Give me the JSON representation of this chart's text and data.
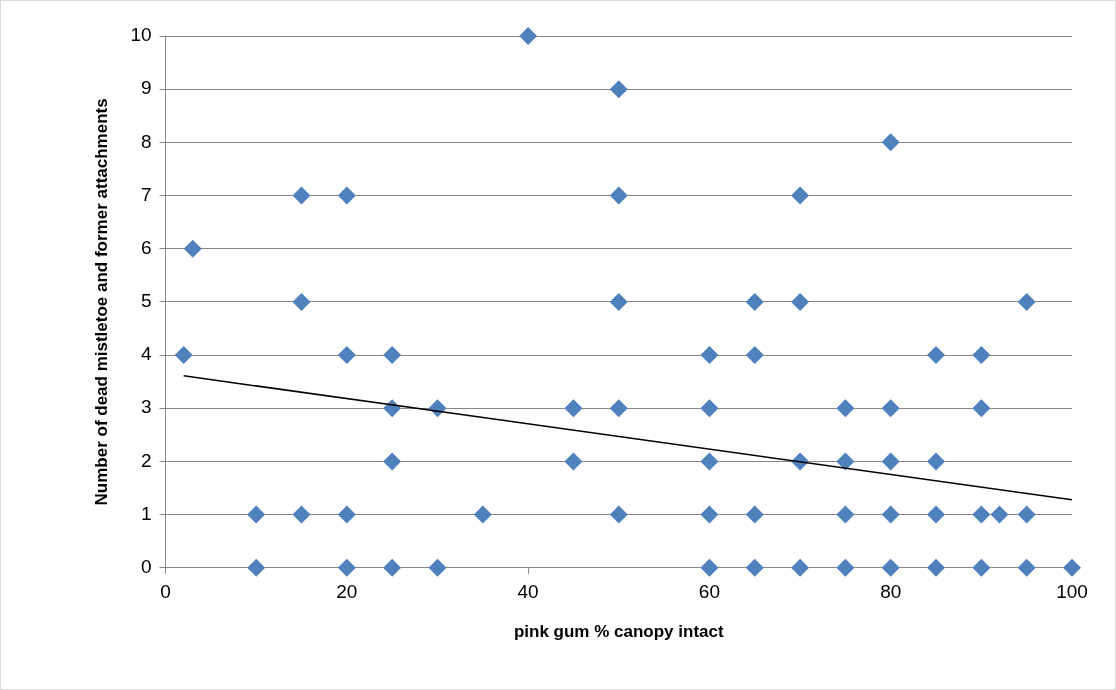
{
  "chart_data": {
    "type": "scatter",
    "xlabel": "pink gum % canopy intact",
    "ylabel": "Number of dead mistletoe and former attachments",
    "xlim": [
      0,
      100
    ],
    "xticks": [
      0,
      20,
      40,
      60,
      80,
      100
    ],
    "ylim": [
      0,
      10
    ],
    "yticks": [
      0,
      1,
      2,
      3,
      4,
      5,
      6,
      7,
      8,
      9,
      10
    ],
    "grid": "y",
    "legend": false,
    "marker": "diamond",
    "series": [
      {
        "color": "#4f81bd",
        "x": [
          40,
          50,
          80,
          15,
          20,
          50,
          70,
          3,
          15,
          50,
          65,
          70,
          95,
          2,
          20,
          25,
          60,
          65,
          85,
          90,
          25,
          30,
          45,
          50,
          60,
          75,
          80,
          90,
          25,
          45,
          60,
          70,
          75,
          80,
          85,
          10,
          15,
          20,
          35,
          50,
          60,
          65,
          75,
          80,
          85,
          90,
          92,
          95,
          10,
          20,
          25,
          30,
          60,
          65,
          70,
          75,
          80,
          85,
          90,
          95,
          100
        ],
        "values": [
          10,
          9,
          8,
          7,
          7,
          7,
          7,
          6,
          5,
          5,
          5,
          5,
          5,
          4,
          4,
          4,
          4,
          4,
          4,
          4,
          3,
          3,
          3,
          3,
          3,
          3,
          3,
          3,
          2,
          2,
          2,
          2,
          2,
          2,
          2,
          1,
          1,
          1,
          1,
          1,
          1,
          1,
          1,
          1,
          1,
          1,
          1,
          1,
          0,
          0,
          0,
          0,
          0,
          0,
          0,
          0,
          0,
          0,
          0,
          0,
          0
        ]
      },
      {
        "type": "line",
        "color": "#000000",
        "marker": "none",
        "x": [
          2,
          100
        ],
        "values": [
          3.61,
          1.28
        ]
      }
    ]
  }
}
